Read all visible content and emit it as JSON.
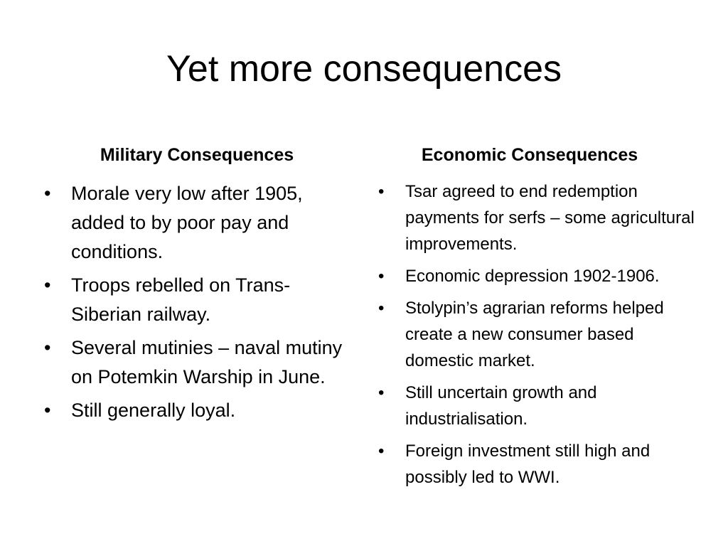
{
  "slide": {
    "title": "Yet more consequences",
    "bullet_glyph": "•",
    "left_column": {
      "heading": "Military Consequences",
      "items": [
        "Morale very low after 1905, added to by poor pay and conditions.",
        "Troops rebelled on Trans-Siberian railway.",
        "Several mutinies – naval mutiny on Potemkin Warship in June.",
        "Still generally loyal."
      ]
    },
    "right_column": {
      "heading": "Economic Consequences",
      "items": [
        "Tsar agreed to end redemption payments for serfs – some agricultural improvements.",
        "Economic depression 1902-1906.",
        "Stolypin’s agrarian reforms helped create a new consumer based domestic market.",
        "Still uncertain growth and industrialisation.",
        "Foreign investment still high and possibly led to WWI."
      ]
    }
  }
}
